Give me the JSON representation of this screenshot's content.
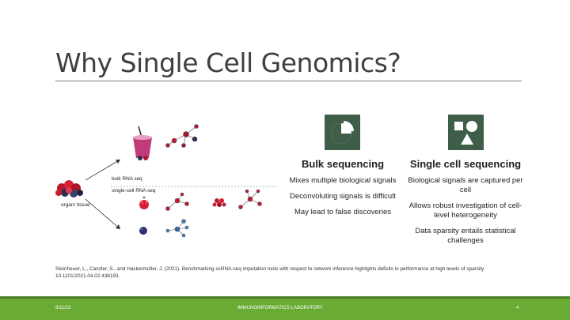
{
  "slide": {
    "title": "Why Single Cell Genomics?",
    "figure": {
      "bulk_label": "bulk RNA seq",
      "single_label": "single-cell RNA seq",
      "organ_label": "organ/ tissue"
    },
    "bulk": {
      "heading": "Bulk sequencing",
      "icon": "pie-chart-icon",
      "points": [
        "Mixes multiple biological signals",
        "Deconvoluting signals is difficult",
        "May lead to false discoveries"
      ]
    },
    "single": {
      "heading": "Single cell sequencing",
      "icon": "shapes-icon",
      "points": [
        "Biological signals are captured per cell",
        "Allows robust investigation of cell-level heterogeneity",
        "Data sparsity entails statistical challenges"
      ]
    },
    "citation": "Steinheuer, L., Canzler, S., and Hackermüller, J. (2021). Benchmarking scRNA-seq imputation tools with respect to network inference highlights deficits in performance at high levels of sparsity 10.1101/2021.04.02.438193.",
    "footer": {
      "date": "9/11/22",
      "lab": "IMMUNOINFORMATICS LABORATORY",
      "page": "4"
    },
    "colors": {
      "icon_fill": "#3f5e4a",
      "footer_green": "#6aab34",
      "footer_dark": "#4a7d28"
    }
  }
}
